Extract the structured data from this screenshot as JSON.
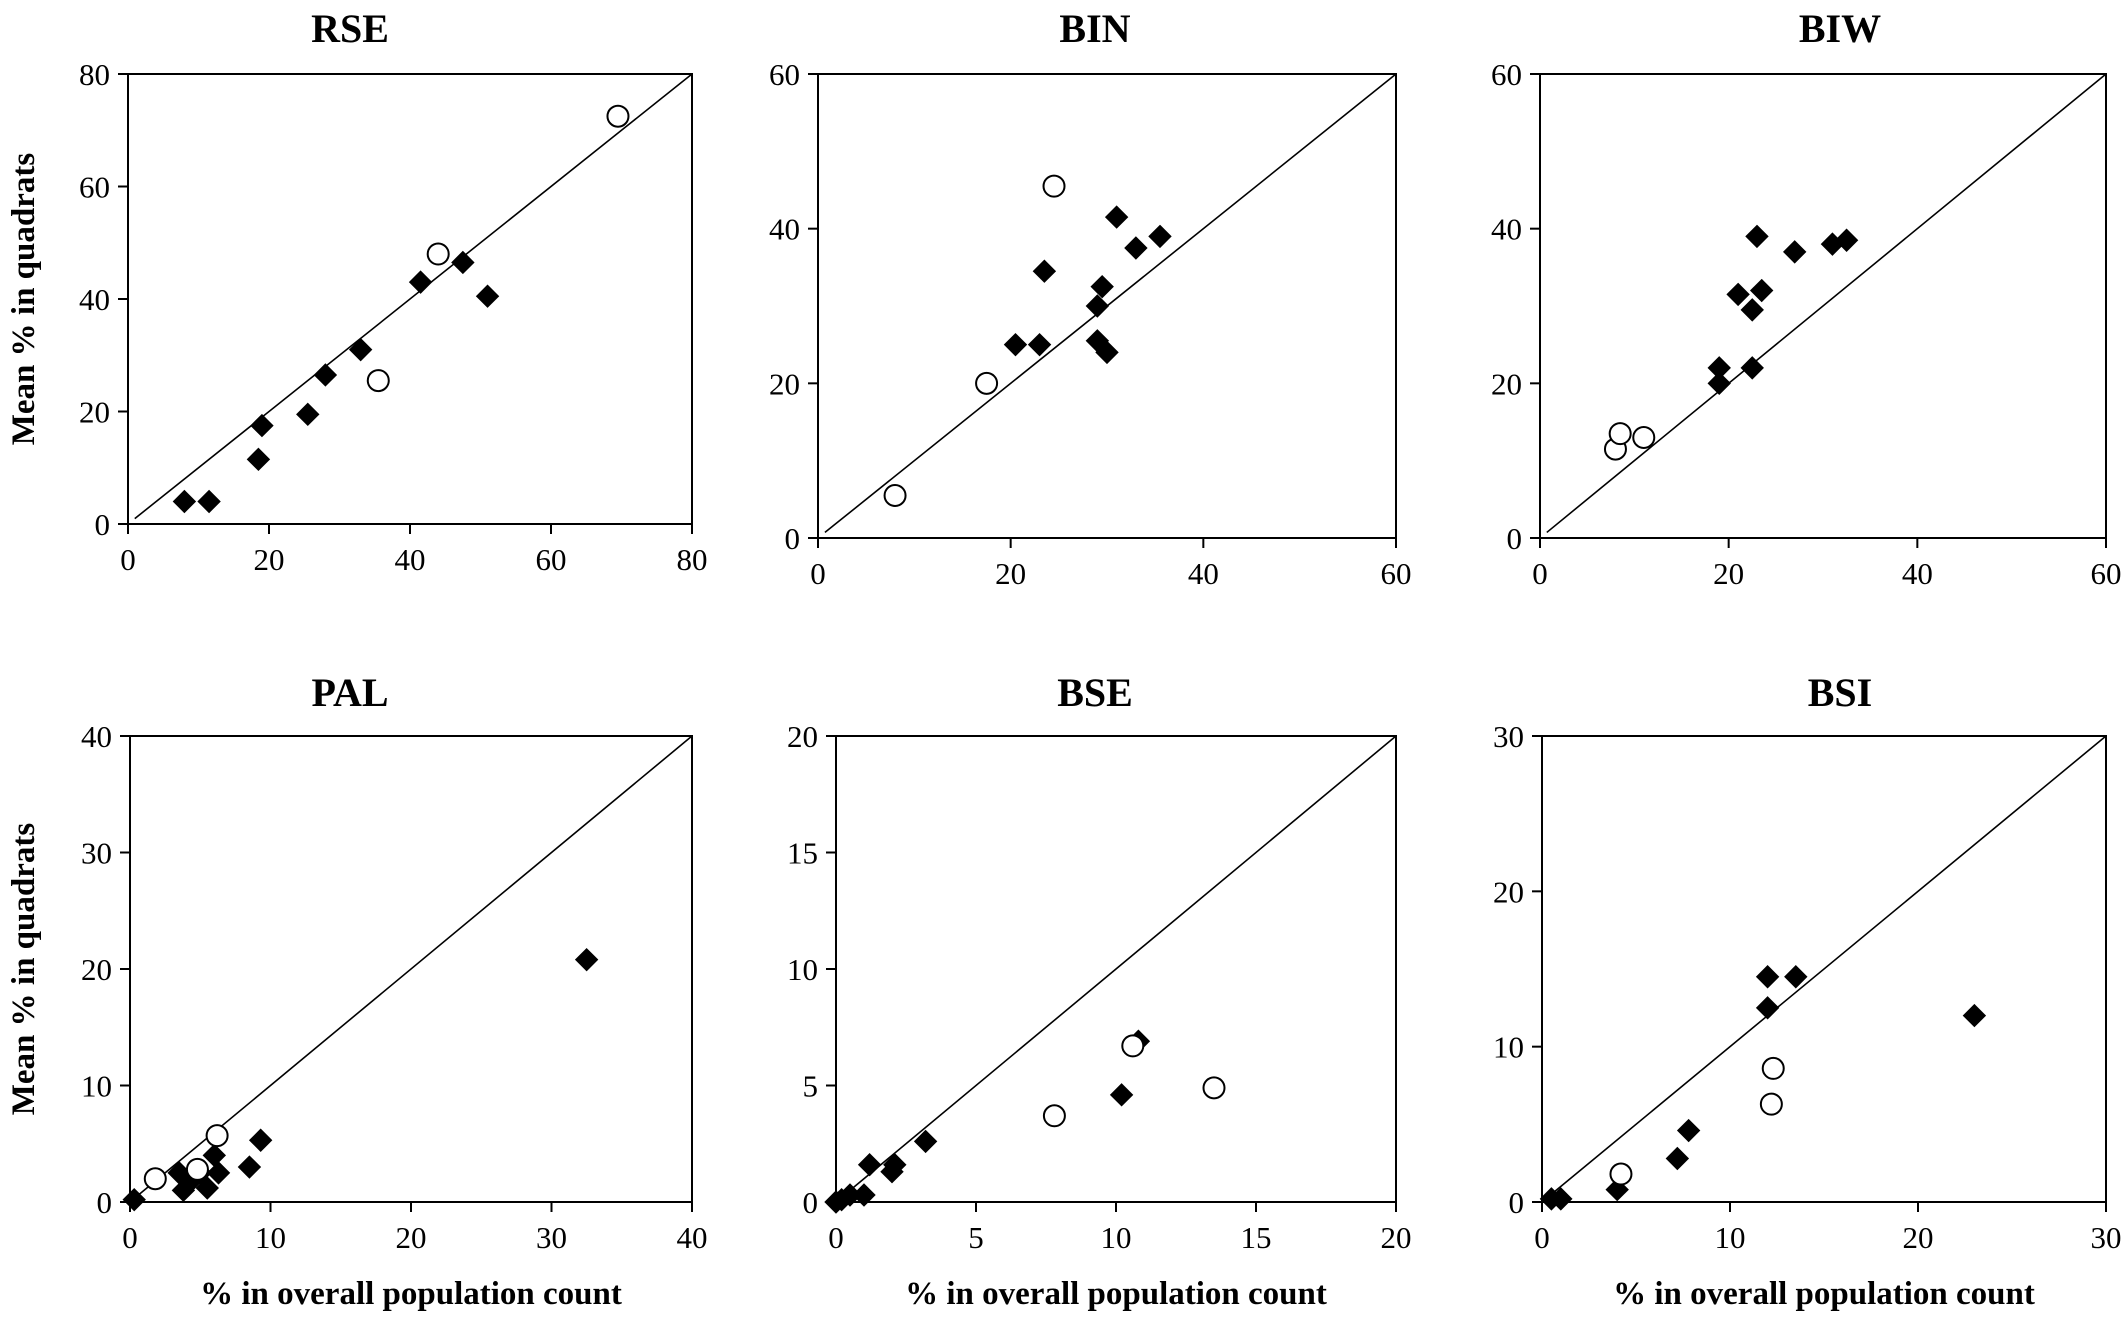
{
  "figure": {
    "ylabel": "Mean % in quadrats",
    "xlabel": "% in overall population count"
  },
  "chart_data": [
    {
      "type": "scatter",
      "title": "RSE",
      "xlim": [
        0,
        80
      ],
      "ylim": [
        0,
        80
      ],
      "xticks": [
        0,
        20,
        40,
        60,
        80
      ],
      "yticks": [
        0,
        20,
        40,
        60,
        80
      ],
      "xlabel": "",
      "ylabel": "Mean % in quadrats",
      "reference_line": "y = x",
      "series": [
        {
          "marker": "filled-diamond",
          "points": [
            [
              8,
              4
            ],
            [
              11.5,
              4
            ],
            [
              18.5,
              11.5
            ],
            [
              19,
              17.5
            ],
            [
              25.5,
              19.5
            ],
            [
              28,
              26.5
            ],
            [
              33,
              31
            ],
            [
              41.5,
              43
            ],
            [
              47.5,
              46.5
            ],
            [
              51,
              40.5
            ]
          ]
        },
        {
          "marker": "open-circle",
          "points": [
            [
              35.5,
              25.5
            ],
            [
              44,
              48
            ],
            [
              69.5,
              72.5
            ]
          ]
        }
      ]
    },
    {
      "type": "scatter",
      "title": "BIN",
      "xlim": [
        0,
        60
      ],
      "ylim": [
        0,
        60
      ],
      "xticks": [
        0,
        20,
        40,
        60
      ],
      "yticks": [
        0,
        20,
        40,
        60
      ],
      "xlabel": "",
      "ylabel": "",
      "reference_line": "y = x",
      "series": [
        {
          "marker": "filled-diamond",
          "points": [
            [
              20.5,
              25
            ],
            [
              23,
              25
            ],
            [
              23.5,
              34.5
            ],
            [
              29,
              30
            ],
            [
              29,
              25.5
            ],
            [
              29.5,
              32.5
            ],
            [
              30,
              24
            ],
            [
              31,
              41.5
            ],
            [
              33,
              37.5
            ],
            [
              35.5,
              39
            ]
          ]
        },
        {
          "marker": "open-circle",
          "points": [
            [
              8,
              5.5
            ],
            [
              17.5,
              20
            ],
            [
              24.5,
              45.5
            ]
          ]
        }
      ]
    },
    {
      "type": "scatter",
      "title": "BIW",
      "xlim": [
        0,
        60
      ],
      "ylim": [
        0,
        60
      ],
      "xticks": [
        0,
        20,
        40,
        60
      ],
      "yticks": [
        0,
        20,
        40,
        60
      ],
      "xlabel": "",
      "ylabel": "",
      "reference_line": "y = x",
      "series": [
        {
          "marker": "filled-diamond",
          "points": [
            [
              19,
              20
            ],
            [
              19,
              22
            ],
            [
              21,
              31.5
            ],
            [
              22.5,
              22
            ],
            [
              22.5,
              29.5
            ],
            [
              23,
              39
            ],
            [
              23.5,
              32
            ],
            [
              27,
              37
            ],
            [
              31,
              38
            ],
            [
              32.5,
              38.5
            ]
          ]
        },
        {
          "marker": "open-circle",
          "points": [
            [
              8,
              11.5
            ],
            [
              8.5,
              13.5
            ],
            [
              11,
              13
            ]
          ]
        }
      ]
    },
    {
      "type": "scatter",
      "title": "PAL",
      "xlim": [
        0,
        40
      ],
      "ylim": [
        0,
        40
      ],
      "xticks": [
        0,
        10,
        20,
        30,
        40
      ],
      "yticks": [
        0,
        10,
        20,
        30,
        40
      ],
      "xlabel": "% in overall population count",
      "ylabel": "Mean % in quadrats",
      "reference_line": "y = x",
      "series": [
        {
          "marker": "filled-diamond",
          "points": [
            [
              0.3,
              0.2
            ],
            [
              3.5,
              2.5
            ],
            [
              3.8,
              1
            ],
            [
              4.5,
              2
            ],
            [
              5,
              2.5
            ],
            [
              5.5,
              1.2
            ],
            [
              6,
              4
            ],
            [
              6.3,
              2.5
            ],
            [
              8.5,
              3
            ],
            [
              9.3,
              5.3
            ],
            [
              32.5,
              20.8
            ]
          ]
        },
        {
          "marker": "open-circle",
          "points": [
            [
              1.8,
              2
            ],
            [
              4.8,
              2.8
            ],
            [
              6.2,
              5.7
            ]
          ]
        }
      ]
    },
    {
      "type": "scatter",
      "title": "BSE",
      "xlim": [
        0,
        20
      ],
      "ylim": [
        0,
        20
      ],
      "xticks": [
        0,
        5,
        10,
        15,
        20
      ],
      "yticks": [
        0,
        5,
        10,
        15,
        20
      ],
      "xlabel": "% in overall population count",
      "ylabel": "",
      "reference_line": "y = x",
      "series": [
        {
          "marker": "filled-diamond",
          "points": [
            [
              0,
              0
            ],
            [
              0.2,
              0.1
            ],
            [
              0.5,
              0.3
            ],
            [
              1,
              0.3
            ],
            [
              1.2,
              1.6
            ],
            [
              2,
              1.3
            ],
            [
              2.1,
              1.6
            ],
            [
              3.2,
              2.6
            ],
            [
              10.2,
              4.6
            ],
            [
              10.8,
              6.9
            ]
          ]
        },
        {
          "marker": "open-circle",
          "points": [
            [
              7.8,
              3.7
            ],
            [
              10.6,
              6.7
            ],
            [
              13.5,
              4.9
            ]
          ]
        }
      ]
    },
    {
      "type": "scatter",
      "title": "BSI",
      "xlim": [
        0,
        30
      ],
      "ylim": [
        0,
        30
      ],
      "xticks": [
        0,
        10,
        20,
        30
      ],
      "yticks": [
        0,
        10,
        20,
        30
      ],
      "xlabel": "% in overall population count",
      "ylabel": "",
      "reference_line": "y = x",
      "series": [
        {
          "marker": "filled-diamond",
          "points": [
            [
              0.5,
              0.2
            ],
            [
              1,
              0.2
            ],
            [
              4,
              0.8
            ],
            [
              7.2,
              2.8
            ],
            [
              7.8,
              4.6
            ],
            [
              12,
              12.5
            ],
            [
              12,
              14.5
            ],
            [
              13.5,
              14.5
            ],
            [
              23,
              12
            ]
          ]
        },
        {
          "marker": "open-circle",
          "points": [
            [
              4.2,
              1.8
            ],
            [
              12.2,
              6.3
            ],
            [
              12.3,
              8.6
            ]
          ]
        }
      ]
    }
  ]
}
